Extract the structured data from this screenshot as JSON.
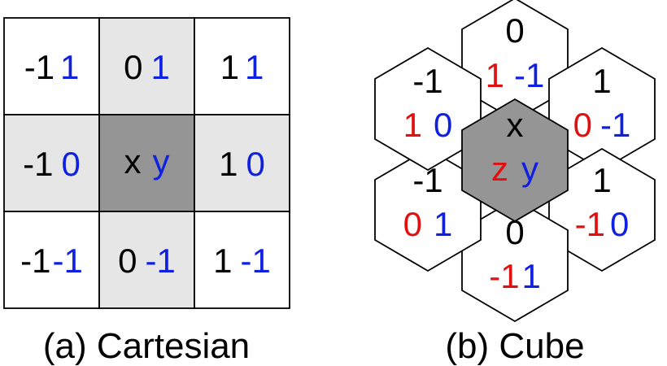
{
  "colors": {
    "black": "#000000",
    "blue": "#1020e0",
    "red": "#e01010",
    "light_gray": "#e6e6e6",
    "dark_gray": "#959595",
    "white": "#ffffff"
  },
  "cartesian": {
    "caption": "(a) Cartesian",
    "cells": [
      {
        "a": "-1",
        "b": "1"
      },
      {
        "a": "0",
        "b": "1"
      },
      {
        "a": "1",
        "b": "1"
      },
      {
        "a": "-1",
        "b": "0"
      },
      {
        "a": "x",
        "b": "y"
      },
      {
        "a": "1",
        "b": "0"
      },
      {
        "a": "-1",
        "b": "-1"
      },
      {
        "a": "0",
        "b": "-1"
      },
      {
        "a": "1",
        "b": "-1"
      }
    ]
  },
  "cube": {
    "caption": "(b) Cube",
    "center": {
      "x": "x",
      "z": "z",
      "y": "y"
    },
    "neighbors": [
      {
        "x": "0",
        "z": "1",
        "y": "-1"
      },
      {
        "x": "1",
        "z": "0",
        "y": "-1"
      },
      {
        "x": "1",
        "z": "-1",
        "y": "0"
      },
      {
        "x": "0",
        "z": "-1",
        "y": "1"
      },
      {
        "x": "-1",
        "z": "0",
        "y": "1"
      },
      {
        "x": "-1",
        "z": "1",
        "y": "0"
      }
    ]
  }
}
